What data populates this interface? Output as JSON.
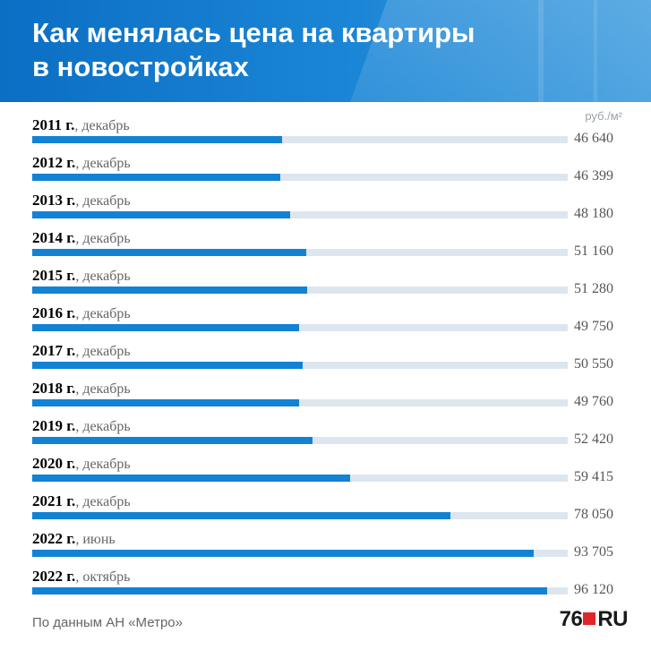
{
  "header": {
    "title_line1": "Как менялась цена на квартиры",
    "title_line2": "в новостройках",
    "accent": "#0b6fc4"
  },
  "chart_data": {
    "type": "bar",
    "orientation": "horizontal",
    "title": "Как менялась цена на квартиры в новостройках",
    "unit": "руб./м²",
    "xlim": [
      0,
      100000
    ],
    "categories": [
      {
        "year": "2011 г.",
        "period": ", декабрь"
      },
      {
        "year": "2012 г.",
        "period": ", декабрь"
      },
      {
        "year": "2013 г.",
        "period": ", декабрь"
      },
      {
        "year": "2014 г.",
        "period": ", декабрь"
      },
      {
        "year": "2015 г.",
        "period": ", декабрь"
      },
      {
        "year": "2016 г.",
        "period": ", декабрь"
      },
      {
        "year": "2017 г.",
        "period": ", декабрь"
      },
      {
        "year": "2018 г.",
        "period": ", декабрь"
      },
      {
        "year": "2019 г.",
        "period": ", декабрь"
      },
      {
        "year": "2020 г.",
        "period": ", декабрь"
      },
      {
        "year": "2021 г.",
        "period": ", декабрь"
      },
      {
        "year": "2022 г.",
        "period": ", июнь"
      },
      {
        "year": "2022 г.",
        "period": ", октябрь"
      }
    ],
    "values": [
      46640,
      46399,
      48180,
      51160,
      51280,
      49750,
      50550,
      49760,
      52420,
      59415,
      78050,
      93705,
      96120
    ],
    "value_labels": [
      "46 640",
      "46 399",
      "48 180",
      "51 160",
      "51 280",
      "49 750",
      "50 550",
      "49 760",
      "52 420",
      "59 415",
      "78 050",
      "93 705",
      "96 120"
    ],
    "bar_color": "#1282d4",
    "track_color": "#dde6ef"
  },
  "footer": {
    "source": "По данным АН «Метро»",
    "logo_num": "76",
    "logo_ru": "RU"
  }
}
